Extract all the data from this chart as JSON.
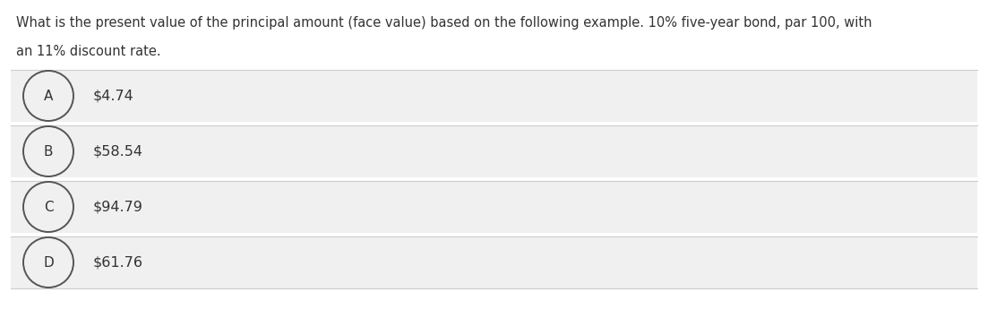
{
  "question_line1": "What is the present value of the principal amount (face value) based on the following example. 10% five-year bond, par 100, with",
  "question_line2": "an 11% discount rate.",
  "options": [
    {
      "label": "A",
      "text": "$4.74"
    },
    {
      "label": "B",
      "text": "$58.54"
    },
    {
      "label": "C",
      "text": "$94.79"
    },
    {
      "label": "D",
      "text": "$61.76"
    }
  ],
  "bg_color": "#ffffff",
  "option_bg_color": "#f0f0f0",
  "option_border_color": "#cccccc",
  "text_color": "#333333",
  "circle_edge_color": "#555555",
  "question_fontsize": 10.5,
  "option_fontsize": 11.5,
  "label_fontsize": 11.0
}
